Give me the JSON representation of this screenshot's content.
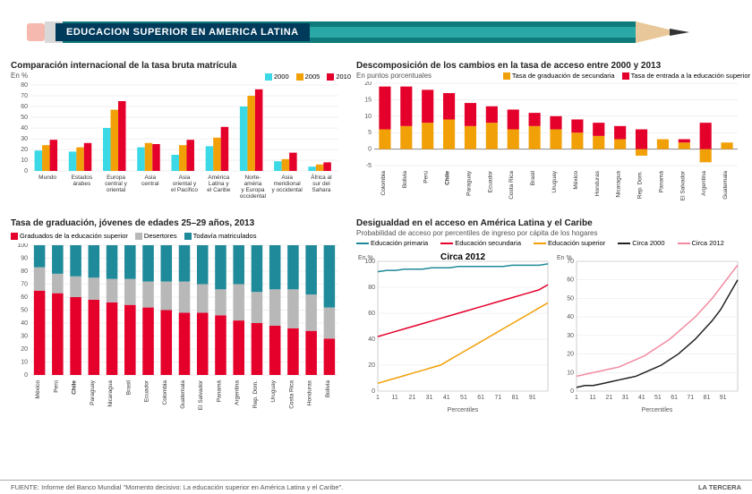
{
  "header": {
    "title": "EDUCACION SUPERIOR EN AMERICA LATINA",
    "pencil": {
      "body_color": "#2aa8a8",
      "stripe_color": "#0f7a7a",
      "ferrule_color": "#d8d8d8",
      "eraser_color": "#f5b9b0",
      "wood_color": "#e8c89a",
      "tip_color": "#333333"
    }
  },
  "colors": {
    "cyan": "#3bd8e6",
    "orange": "#f2a007",
    "red": "#e4002b",
    "grey": "#b8b8b8",
    "teal": "#1f8a99",
    "black": "#222222",
    "pink": "#f28aa0",
    "grid": "#e0e0e0",
    "bg": "#ffffff"
  },
  "chart1": {
    "title": "Comparación internacional de la tasa bruta matrícula",
    "subtitle": "En %",
    "type": "grouped-bar",
    "series_labels": [
      "2000",
      "2005",
      "2010"
    ],
    "series_colors": [
      "#3bd8e6",
      "#f2a007",
      "#e4002b"
    ],
    "ylim": [
      0,
      80
    ],
    "ytick_step": 10,
    "categories": [
      "Mundo",
      "Estados\nárabes",
      "Europa\ncentral y\noriental",
      "Asia\ncentral",
      "Asia\noriental y\nel Pacífico",
      "América\nLatina y\nel Caribe",
      "Norte-\naméria\ny Europa\noccidental",
      "Asia\nmeridional\ny occidental",
      "África al\nsur del\nSahara"
    ],
    "values": [
      [
        19,
        18,
        40,
        22,
        15,
        23,
        60,
        9,
        4
      ],
      [
        24,
        22,
        57,
        26,
        24,
        31,
        70,
        11,
        6
      ],
      [
        29,
        26,
        65,
        25,
        29,
        41,
        76,
        17,
        8
      ]
    ]
  },
  "chart2": {
    "title": "Descomposición de los cambios en la tasa de acceso entre 2000 y 2013",
    "subtitle": "En puntos porcentuales",
    "type": "stacked-bar",
    "series_labels": [
      "Tasa de graduación\nde secundaria",
      "Tasa de entrada\na la educación superior"
    ],
    "series_colors": [
      "#f2a007",
      "#e4002b"
    ],
    "ylim": [
      -5,
      20
    ],
    "ytick_step": 5,
    "categories": [
      "Colombia",
      "Bolivia",
      "Perú",
      "Chile",
      "Paraguay",
      "Ecuador",
      "Costa Rica",
      "Brasil",
      "Uruguay",
      "México",
      "Honduras",
      "Nicaragua",
      "Rep. Dom.",
      "Panamá",
      "El Salvador",
      "Argentina",
      "Guatemala"
    ],
    "highlight_category": "Chile",
    "values_a": [
      6,
      7,
      8,
      9,
      7,
      8,
      6,
      7,
      6,
      5,
      4,
      3,
      -2,
      3,
      2,
      -4,
      2
    ],
    "values_b": [
      13,
      12,
      10,
      8,
      7,
      5,
      6,
      4,
      4,
      4,
      4,
      4,
      6,
      0,
      1,
      8,
      0
    ]
  },
  "chart3": {
    "title": "Tasa de graduación, jóvenes de edades 25–29 años, 2013",
    "subtitle": "",
    "type": "stacked-bar-100",
    "series_labels": [
      "Graduados de la educación superior",
      "Desertores",
      "Todavía matriculados"
    ],
    "series_colors": [
      "#e4002b",
      "#b8b8b8",
      "#1f8a99"
    ],
    "ylim": [
      0,
      100
    ],
    "ytick_step": 10,
    "categories": [
      "México",
      "Perú",
      "Chile",
      "Paraguay",
      "Nicaragua",
      "Brasil",
      "Ecuador",
      "Colombia",
      "Guatemala",
      "El Salvador",
      "Panamá",
      "Argentina",
      "Rep. Dom.",
      "Uruguay",
      "Costa Rica",
      "Honduras",
      "Bolivia"
    ],
    "highlight_category": "Chile",
    "values_a": [
      65,
      63,
      60,
      58,
      56,
      54,
      52,
      50,
      48,
      48,
      46,
      42,
      40,
      38,
      36,
      34,
      28
    ],
    "values_b": [
      18,
      15,
      16,
      17,
      18,
      20,
      20,
      22,
      24,
      22,
      20,
      28,
      24,
      28,
      30,
      28,
      24
    ],
    "values_c": [
      17,
      22,
      24,
      25,
      26,
      26,
      28,
      28,
      28,
      30,
      34,
      30,
      36,
      34,
      34,
      38,
      48
    ]
  },
  "chart4a": {
    "title": "Desigualdad en el acceso en América Latina y el Caribe",
    "subtitle": "Probabilidad de acceso por percentiles de ingreso por cápita de los hogares",
    "inner_title": "Circa 2012",
    "type": "line",
    "ylim": [
      0,
      100
    ],
    "ytick_step": 20,
    "xlim": [
      1,
      100
    ],
    "xtick_step": 10,
    "xlabel": "Percentiles",
    "ylabel": "En %",
    "series": [
      {
        "label": "Educación\nprimaria",
        "color": "#1f8a99",
        "values": [
          92,
          93,
          93,
          94,
          94,
          94,
          95,
          95,
          95,
          96,
          96,
          96,
          96,
          96,
          96,
          97,
          97,
          97,
          97,
          98
        ]
      },
      {
        "label": "Educación\nsecundaria",
        "color": "#e4002b",
        "values": [
          42,
          44,
          46,
          48,
          50,
          52,
          54,
          56,
          58,
          60,
          62,
          64,
          66,
          68,
          70,
          72,
          74,
          76,
          78,
          82
        ]
      },
      {
        "label": "Educación\nsuperior",
        "color": "#f2a007",
        "values": [
          6,
          8,
          10,
          12,
          14,
          16,
          18,
          20,
          24,
          28,
          32,
          36,
          40,
          44,
          48,
          52,
          56,
          60,
          64,
          68
        ]
      }
    ]
  },
  "chart4b": {
    "type": "line",
    "ylim": [
      0,
      70
    ],
    "ytick_step": 10,
    "xlim": [
      1,
      100
    ],
    "xtick_step": 10,
    "xlabel": "Percentiles",
    "ylabel": "En %",
    "series": [
      {
        "label": "Circa 2000",
        "color": "#222222",
        "values": [
          2,
          3,
          3,
          4,
          5,
          6,
          7,
          8,
          10,
          12,
          14,
          17,
          20,
          24,
          28,
          33,
          38,
          44,
          52,
          60
        ]
      },
      {
        "label": "Circa 2012",
        "color": "#f28aa0",
        "values": [
          8,
          9,
          10,
          11,
          12,
          13,
          15,
          17,
          19,
          22,
          25,
          28,
          32,
          36,
          40,
          45,
          50,
          56,
          62,
          68
        ]
      }
    ]
  },
  "footer": {
    "source": "FUENTE: Informe del Banco Mundial \"Momento decisivo: La educación superior en América Latina y el Caribe\".",
    "brand": "LA TERCERA"
  }
}
